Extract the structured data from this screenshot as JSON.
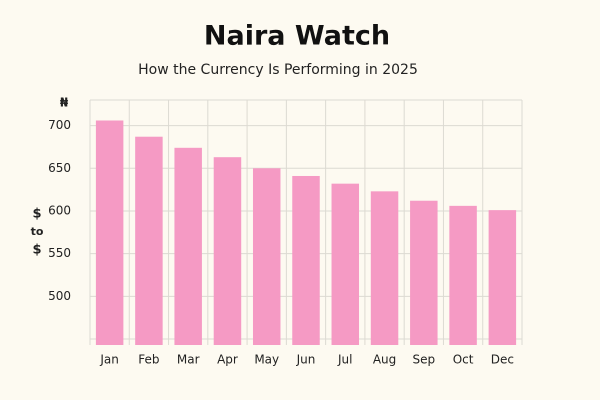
{
  "chart_data": {
    "type": "bar",
    "title": "Naira Watch",
    "subtitle": "How the Currency Is Performing in 2025",
    "y_unit": "₦",
    "y_label": [
      "$",
      "to",
      "$"
    ],
    "categories": [
      "Jan",
      "Feb",
      "Mar",
      "Apr",
      "May",
      "Jun",
      "Jul",
      "Aug",
      "Sep",
      "Oct",
      "Dec"
    ],
    "values": [
      706,
      687,
      674,
      663,
      650,
      641,
      632,
      623,
      612,
      606,
      601
    ],
    "color": "#f59ac4",
    "ylim": [
      443,
      730
    ],
    "yticks": [
      500,
      550,
      600,
      650,
      700
    ],
    "grid": true
  }
}
